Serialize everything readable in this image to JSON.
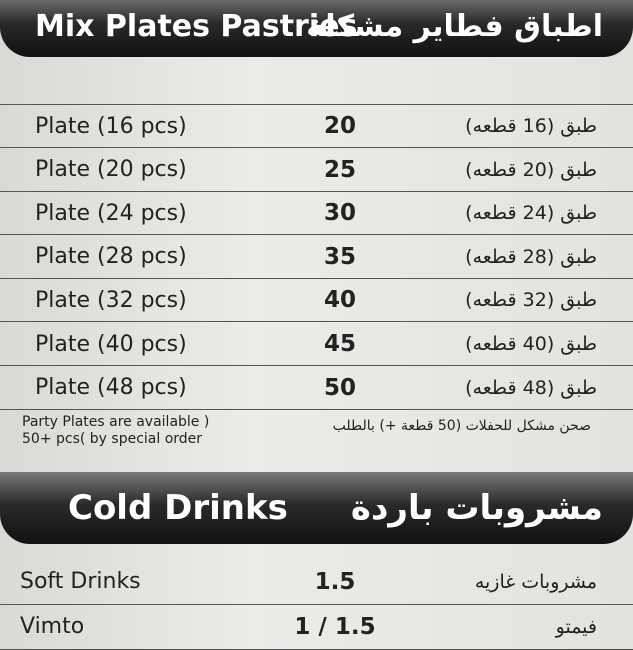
{
  "sections": [
    {
      "title": "Mix Plates Pastries",
      "title_ar": "اطباق فطاير مشكلة",
      "items": [
        {
          "name": "Plate (16 pcs)",
          "price": "20",
          "name_ar": "طبق (16 قطعه)"
        },
        {
          "name": "Plate (20 pcs)",
          "price": "25",
          "name_ar": "طبق (20 قطعه)"
        },
        {
          "name": "Plate (24 pcs)",
          "price": "30",
          "name_ar": "طبق (24 قطعه)"
        },
        {
          "name": "Plate (28 pcs)",
          "price": "35",
          "name_ar": "طبق (28 قطعه)"
        },
        {
          "name": "Plate (32 pcs)",
          "price": "40",
          "name_ar": "طبق (32 قطعه)"
        },
        {
          "name": "Plate (40 pcs)",
          "price": "45",
          "name_ar": "طبق (40 قطعه)"
        },
        {
          "name": "Plate (48 pcs)",
          "price": "50",
          "name_ar": "طبق (48 قطعه)"
        }
      ],
      "note": [
        "Party Plates are available )",
        "50+ pcs( by special order"
      ],
      "note_ar": "صحن مشكل للحفلات (50 قطعة +) بالطلب"
    },
    {
      "title": "Cold Drinks",
      "title_ar": "مشروبات باردة",
      "items": [
        {
          "name": "Soft Drinks",
          "price": "1.5",
          "name_ar": "مشروبات غازيه"
        },
        {
          "name": "Vimto",
          "price": "1 / 1.5",
          "name_ar": "فيمتو"
        }
      ]
    }
  ]
}
